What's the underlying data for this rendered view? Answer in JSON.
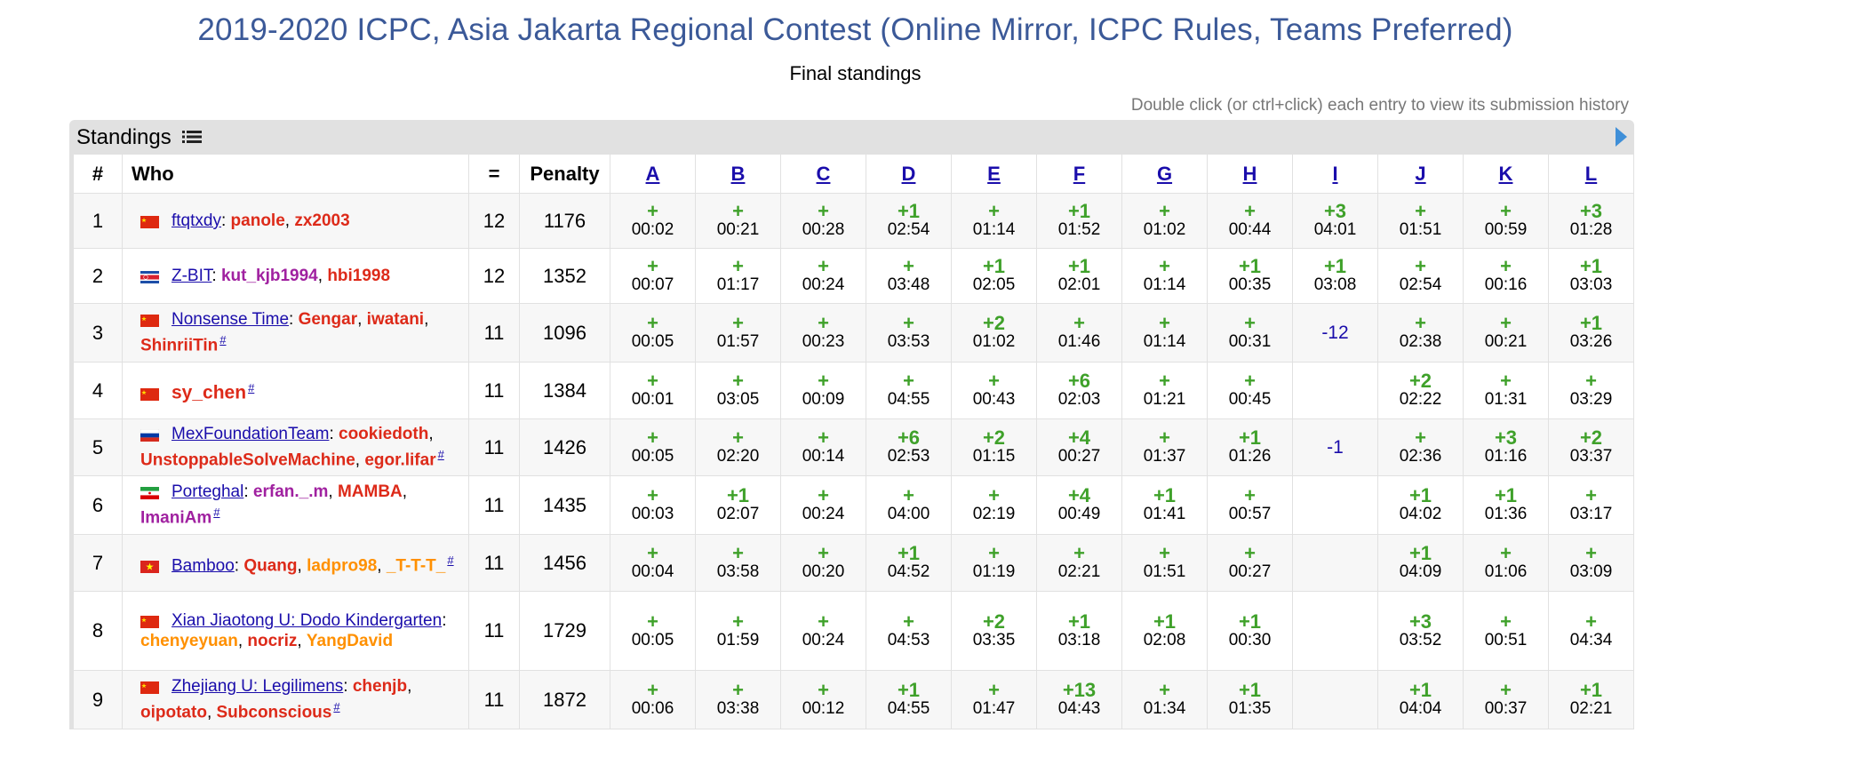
{
  "title": "2019-2020 ICPC, Asia Jakarta Regional Contest (Online Mirror, ICPC Rules, Teams Preferred)",
  "subtitle": "Final standings",
  "hint": "Double click (or ctrl+click) each entry to view its submission history",
  "standings_label": "Standings",
  "icons": {
    "list": "list-icon",
    "toggle": "arrow-right-icon"
  },
  "headers": {
    "rank": "#",
    "who": "Who",
    "solved": "=",
    "penalty": "Penalty"
  },
  "problems": [
    "A",
    "B",
    "C",
    "D",
    "E",
    "F",
    "G",
    "H",
    "I",
    "J",
    "K",
    "L"
  ],
  "colors": {
    "title": "#3b5998",
    "accepted": "#3fa12a",
    "red_handle": "#dd2a19",
    "purple_handle": "#a021a0",
    "orange_handle": "#ff9000",
    "link": "#1a0dab"
  },
  "rows": [
    {
      "rank": "1",
      "flag": "china",
      "team": "ftqtxdy",
      "members": [
        {
          "name": "panole",
          "color": "red"
        },
        {
          "name": "zx2003",
          "color": "red"
        }
      ],
      "hash": false,
      "solved": "12",
      "penalty": "1176",
      "cells": [
        {
          "res": "+",
          "time": "00:02"
        },
        {
          "res": "+",
          "time": "00:21"
        },
        {
          "res": "+",
          "time": "00:28"
        },
        {
          "res": "+1",
          "time": "02:54"
        },
        {
          "res": "+",
          "time": "01:14"
        },
        {
          "res": "+1",
          "time": "01:52"
        },
        {
          "res": "+",
          "time": "01:02"
        },
        {
          "res": "+",
          "time": "00:44"
        },
        {
          "res": "+3",
          "time": "04:01"
        },
        {
          "res": "+",
          "time": "01:51"
        },
        {
          "res": "+",
          "time": "00:59"
        },
        {
          "res": "+3",
          "time": "01:28"
        }
      ]
    },
    {
      "rank": "2",
      "flag": "korea",
      "team": "Z-BIT",
      "members": [
        {
          "name": "kut_kjb1994",
          "color": "purple"
        },
        {
          "name": "hbi1998",
          "color": "red"
        }
      ],
      "hash": false,
      "solved": "12",
      "penalty": "1352",
      "cells": [
        {
          "res": "+",
          "time": "00:07"
        },
        {
          "res": "+",
          "time": "01:17"
        },
        {
          "res": "+",
          "time": "00:24"
        },
        {
          "res": "+",
          "time": "03:48"
        },
        {
          "res": "+1",
          "time": "02:05"
        },
        {
          "res": "+1",
          "time": "02:01"
        },
        {
          "res": "+",
          "time": "01:14"
        },
        {
          "res": "+1",
          "time": "00:35"
        },
        {
          "res": "+1",
          "time": "03:08"
        },
        {
          "res": "+",
          "time": "02:54"
        },
        {
          "res": "+",
          "time": "00:16"
        },
        {
          "res": "+1",
          "time": "03:03"
        }
      ]
    },
    {
      "rank": "3",
      "flag": "china",
      "team": "Nonsense Time",
      "members": [
        {
          "name": "Gengar",
          "color": "red"
        },
        {
          "name": "iwatani",
          "color": "red"
        },
        {
          "name": "ShinriiTin",
          "color": "red"
        }
      ],
      "hash": true,
      "solved": "11",
      "penalty": "1096",
      "cells": [
        {
          "res": "+",
          "time": "00:05"
        },
        {
          "res": "+",
          "time": "01:57"
        },
        {
          "res": "+",
          "time": "00:23"
        },
        {
          "res": "+",
          "time": "03:53"
        },
        {
          "res": "+2",
          "time": "01:02"
        },
        {
          "res": "+",
          "time": "01:46"
        },
        {
          "res": "+",
          "time": "01:14"
        },
        {
          "res": "+",
          "time": "00:31"
        },
        {
          "rej": "-12"
        },
        {
          "res": "+",
          "time": "02:38"
        },
        {
          "res": "+",
          "time": "00:21"
        },
        {
          "res": "+1",
          "time": "03:26"
        }
      ]
    },
    {
      "rank": "4",
      "flag": "china",
      "team": "",
      "solo": "sy_chen",
      "members": [],
      "hash": true,
      "solved": "11",
      "penalty": "1384",
      "cells": [
        {
          "res": "+",
          "time": "00:01"
        },
        {
          "res": "+",
          "time": "03:05"
        },
        {
          "res": "+",
          "time": "00:09"
        },
        {
          "res": "+",
          "time": "04:55"
        },
        {
          "res": "+",
          "time": "00:43"
        },
        {
          "res": "+6",
          "time": "02:03"
        },
        {
          "res": "+",
          "time": "01:21"
        },
        {
          "res": "+",
          "time": "00:45"
        },
        {},
        {
          "res": "+2",
          "time": "02:22"
        },
        {
          "res": "+",
          "time": "01:31"
        },
        {
          "res": "+",
          "time": "03:29"
        }
      ]
    },
    {
      "rank": "5",
      "flag": "russia",
      "team": "MexFoundationTeam",
      "members": [
        {
          "name": "cookiedoth",
          "color": "red"
        },
        {
          "name": "UnstoppableSolveMachine",
          "color": "red"
        },
        {
          "name": "egor.lifar",
          "color": "red"
        }
      ],
      "hash": true,
      "solved": "11",
      "penalty": "1426",
      "cells": [
        {
          "res": "+",
          "time": "00:05"
        },
        {
          "res": "+",
          "time": "02:20"
        },
        {
          "res": "+",
          "time": "00:14"
        },
        {
          "res": "+6",
          "time": "02:53"
        },
        {
          "res": "+2",
          "time": "01:15"
        },
        {
          "res": "+4",
          "time": "00:27"
        },
        {
          "res": "+",
          "time": "01:37"
        },
        {
          "res": "+1",
          "time": "01:26"
        },
        {
          "rej": "-1"
        },
        {
          "res": "+",
          "time": "02:36"
        },
        {
          "res": "+3",
          "time": "01:16"
        },
        {
          "res": "+2",
          "time": "03:37"
        }
      ]
    },
    {
      "rank": "6",
      "flag": "iran",
      "team": "Porteghal",
      "members": [
        {
          "name": "erfan._.m",
          "color": "purple"
        },
        {
          "name": "MAMBA",
          "color": "red"
        },
        {
          "name": "ImaniAm",
          "color": "purple"
        }
      ],
      "hash": true,
      "solved": "11",
      "penalty": "1435",
      "cells": [
        {
          "res": "+",
          "time": "00:03"
        },
        {
          "res": "+1",
          "time": "02:07"
        },
        {
          "res": "+",
          "time": "00:24"
        },
        {
          "res": "+",
          "time": "04:00"
        },
        {
          "res": "+",
          "time": "02:19"
        },
        {
          "res": "+4",
          "time": "00:49"
        },
        {
          "res": "+1",
          "time": "01:41"
        },
        {
          "res": "+",
          "time": "00:57"
        },
        {},
        {
          "res": "+1",
          "time": "04:02"
        },
        {
          "res": "+1",
          "time": "01:36"
        },
        {
          "res": "+",
          "time": "03:17"
        }
      ]
    },
    {
      "rank": "7",
      "flag": "vietnam",
      "team": "Bamboo",
      "members": [
        {
          "name": "Quang",
          "color": "red"
        },
        {
          "name": "ladpro98",
          "color": "orange"
        },
        {
          "name": "_T-T-T_",
          "color": "orange"
        }
      ],
      "hash": true,
      "solved": "11",
      "penalty": "1456",
      "cells": [
        {
          "res": "+",
          "time": "00:04"
        },
        {
          "res": "+",
          "time": "03:58"
        },
        {
          "res": "+",
          "time": "00:20"
        },
        {
          "res": "+1",
          "time": "04:52"
        },
        {
          "res": "+",
          "time": "01:19"
        },
        {
          "res": "+",
          "time": "02:21"
        },
        {
          "res": "+",
          "time": "01:51"
        },
        {
          "res": "+",
          "time": "00:27"
        },
        {},
        {
          "res": "+1",
          "time": "04:09"
        },
        {
          "res": "+",
          "time": "01:06"
        },
        {
          "res": "+",
          "time": "03:09"
        }
      ]
    },
    {
      "rank": "8",
      "flag": "china",
      "team": "Xian Jiaotong U: Dodo Kindergarten",
      "members": [
        {
          "name": "chenyeyuan",
          "color": "orange"
        },
        {
          "name": "nocriz",
          "color": "red"
        },
        {
          "name": "YangDavid",
          "color": "orange"
        }
      ],
      "hash": false,
      "solved": "11",
      "penalty": "1729",
      "cells": [
        {
          "res": "+",
          "time": "00:05"
        },
        {
          "res": "+",
          "time": "01:59"
        },
        {
          "res": "+",
          "time": "00:24"
        },
        {
          "res": "+",
          "time": "04:53"
        },
        {
          "res": "+2",
          "time": "03:35"
        },
        {
          "res": "+1",
          "time": "03:18"
        },
        {
          "res": "+1",
          "time": "02:08"
        },
        {
          "res": "+1",
          "time": "00:30"
        },
        {},
        {
          "res": "+3",
          "time": "03:52"
        },
        {
          "res": "+",
          "time": "00:51"
        },
        {
          "res": "+",
          "time": "04:34"
        }
      ]
    },
    {
      "rank": "9",
      "flag": "china",
      "team": "Zhejiang U: Legilimens",
      "members": [
        {
          "name": "chenjb",
          "color": "red"
        },
        {
          "name": "oipotato",
          "color": "red"
        },
        {
          "name": "Subconscious",
          "color": "red"
        }
      ],
      "hash": true,
      "solved": "11",
      "penalty": "1872",
      "cells": [
        {
          "res": "+",
          "time": "00:06"
        },
        {
          "res": "+",
          "time": "03:38"
        },
        {
          "res": "+",
          "time": "00:12"
        },
        {
          "res": "+1",
          "time": "04:55"
        },
        {
          "res": "+",
          "time": "01:47"
        },
        {
          "res": "+13",
          "time": "04:43"
        },
        {
          "res": "+",
          "time": "01:34"
        },
        {
          "res": "+1",
          "time": "01:35"
        },
        {},
        {
          "res": "+1",
          "time": "04:04"
        },
        {
          "res": "+",
          "time": "00:37"
        },
        {
          "res": "+1",
          "time": "02:21"
        }
      ]
    }
  ]
}
